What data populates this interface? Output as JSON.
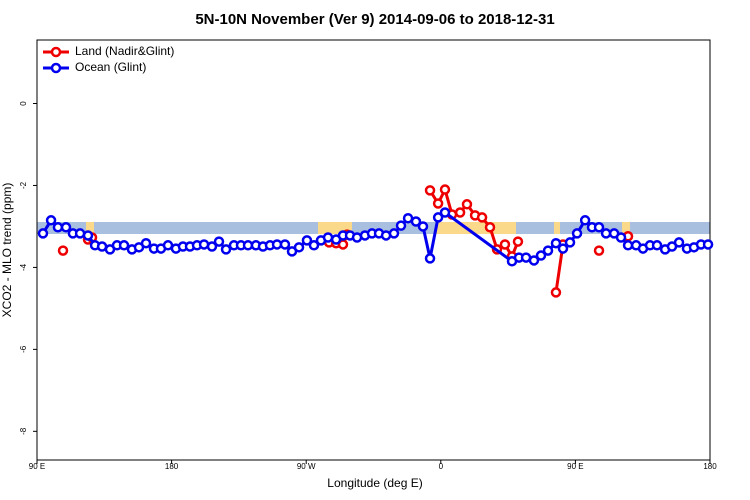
{
  "chart_data": {
    "type": "line",
    "title": "5N-10N November (Ver 9)   2014-09-06 to 2018-12-31",
    "x_label": "Longitude (deg E)",
    "y_label": "XCO2 - MLO trend (ppm)",
    "xlim": [
      90,
      540
    ],
    "ylim": [
      -8.7,
      1.55
    ],
    "xticks": [
      {
        "value": 90,
        "label": "90 E"
      },
      180,
      {
        "value": 270,
        "label": "90 W"
      },
      {
        "value": 360,
        "label": "0"
      },
      {
        "value": 450,
        "label": "90 E"
      },
      {
        "value": 540,
        "label": "180"
      }
    ],
    "yticks": [
      0,
      -2,
      -4,
      -6,
      -8
    ],
    "legend": "topleft",
    "series": [
      {
        "name": "Land (Nadir&Glint)",
        "color": "#ee0000",
        "x": [
          107.4,
          null,
          124.1,
          126.8,
          null,
          285.3,
          290,
          294.6,
          297.3,
          null,
          352.8,
          358.2,
          362.8,
          367.5,
          372.9,
          377.5,
          382.9,
          387.6,
          392.9,
          397.6,
          402.9,
          407.6,
          411.6,
          null,
          437,
          441.7,
          null,
          465.8,
          null,
          485.2
        ],
        "values": [
          -3.59,
          null,
          -3.32,
          -3.27,
          null,
          -3.39,
          -3.41,
          -3.44,
          -3.2,
          null,
          -2.12,
          -2.44,
          -2.1,
          -2.71,
          -2.66,
          -2.46,
          -2.73,
          -2.78,
          -3.02,
          -3.56,
          -3.44,
          -3.73,
          -3.37,
          null,
          -4.61,
          -3.44,
          null,
          -3.59,
          null,
          -3.24
        ]
      },
      {
        "name": "Ocean (Glint)",
        "color": "#0000ee",
        "x": [
          94,
          99.4,
          104,
          109.4,
          114,
          118.8,
          124.1,
          128.8,
          133.5,
          138.8,
          143.5,
          148.2,
          153.5,
          158.2,
          162.9,
          168.2,
          172.9,
          177.6,
          182.9,
          187.6,
          192.3,
          197,
          201.7,
          207,
          211.7,
          216.4,
          221.7,
          226.4,
          231.1,
          236.4,
          241.1,
          245.8,
          250.5,
          255.8,
          260.5,
          265.2,
          270.5,
          275.2,
          279.9,
          284.6,
          290,
          294.6,
          299.3,
          304,
          309.3,
          314,
          318.7,
          323.4,
          328.7,
          333.4,
          338.1,
          343.4,
          348.1,
          352.8,
          358.2,
          362.8,
          407.6,
          412.3,
          417,
          422.3,
          427,
          431.7,
          437,
          441.7,
          446.4,
          451.1,
          456.5,
          461.1,
          465.8,
          470.5,
          475.9,
          480.5,
          485.2,
          490.6,
          495.2,
          499.9,
          504.6,
          510,
          514.6,
          519.3,
          524.6,
          529.3,
          534,
          538.7
        ],
        "values": [
          -3.17,
          -2.85,
          -3.02,
          -3.02,
          -3.17,
          -3.17,
          -3.22,
          -3.46,
          -3.49,
          -3.56,
          -3.46,
          -3.46,
          -3.56,
          -3.51,
          -3.41,
          -3.54,
          -3.54,
          -3.46,
          -3.54,
          -3.49,
          -3.49,
          -3.46,
          -3.44,
          -3.49,
          -3.37,
          -3.56,
          -3.46,
          -3.46,
          -3.46,
          -3.46,
          -3.49,
          -3.46,
          -3.44,
          -3.44,
          -3.61,
          -3.51,
          -3.34,
          -3.46,
          -3.34,
          -3.27,
          -3.32,
          -3.22,
          -3.22,
          -3.27,
          -3.22,
          -3.17,
          -3.17,
          -3.22,
          -3.17,
          -2.98,
          -2.8,
          -2.88,
          -3.0,
          -3.78,
          -2.78,
          -2.66,
          -3.85,
          -3.76,
          -3.76,
          -3.83,
          -3.71,
          -3.59,
          -3.41,
          -3.54,
          -3.39,
          -3.17,
          -2.85,
          -3.02,
          -3.02,
          -3.17,
          -3.17,
          -3.27,
          -3.46,
          -3.46,
          -3.54,
          -3.46,
          -3.46,
          -3.56,
          -3.49,
          -3.39,
          -3.54,
          -3.51,
          -3.44,
          -3.44
        ]
      }
    ]
  }
}
